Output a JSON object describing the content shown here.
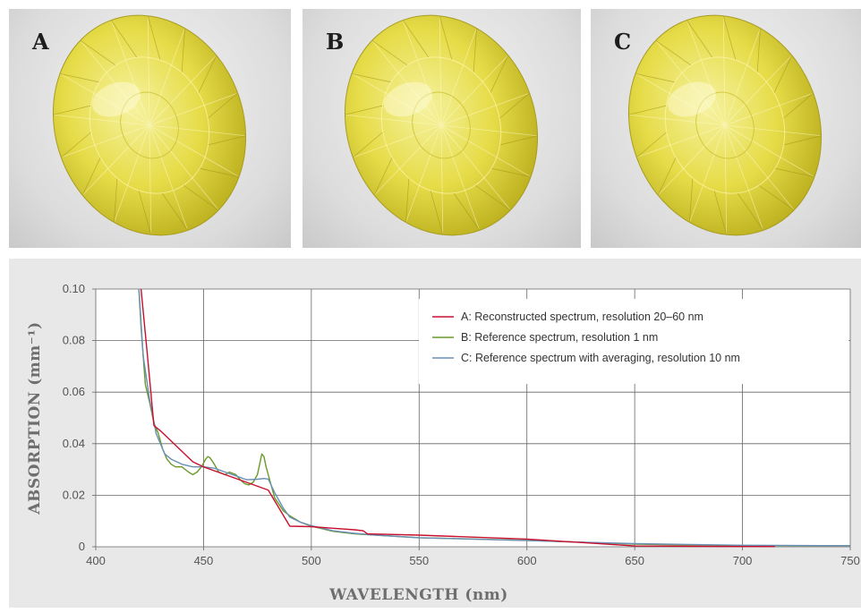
{
  "panels": [
    {
      "label": "A"
    },
    {
      "label": "B"
    },
    {
      "label": "C"
    }
  ],
  "colors": {
    "series_a": "#c8102e",
    "series_b": "#6a9a2a",
    "series_c": "#6a8fb5",
    "gem_light": "#f6f2a0",
    "gem_mid": "#e6dc48",
    "gem_dark": "#b7ab1a"
  },
  "chart_data": {
    "type": "line",
    "xlabel": "WAVELENGTH (nm)",
    "ylabel": "ABSORPTION (mm⁻¹)",
    "xlim": [
      400,
      750
    ],
    "ylim": [
      0,
      0.1
    ],
    "x_ticks": [
      "400",
      "450",
      "500",
      "550",
      "600",
      "650",
      "700",
      "750"
    ],
    "y_ticks": [
      "0",
      "0.02",
      "0.04",
      "0.06",
      "0.08",
      "0.10"
    ],
    "grid": true,
    "legend_position": "top-right",
    "series": [
      {
        "name": "A: Reconstructed spectrum, resolution 20–60 nm",
        "x": [
          421,
          424,
          427,
          430,
          440,
          445,
          450,
          460,
          470,
          480,
          490,
          500,
          510,
          520,
          524,
          526,
          550,
          600,
          650,
          700,
          715
        ],
        "y": [
          0.1,
          0.074,
          0.047,
          0.045,
          0.037,
          0.033,
          0.031,
          0.028,
          0.025,
          0.022,
          0.008,
          0.0078,
          0.0072,
          0.0066,
          0.0062,
          0.005,
          0.0045,
          0.003,
          0.0003,
          0.0001,
          0.0001
        ]
      },
      {
        "name": "B: Reference spectrum, resolution 1 nm",
        "x": [
          420,
          421,
          422,
          423,
          425,
          427,
          429,
          431,
          433,
          435,
          437,
          440,
          443,
          445,
          447,
          449,
          451,
          452,
          453,
          455,
          457,
          460,
          462,
          465,
          467,
          469,
          471,
          473,
          475,
          476,
          477,
          478,
          479,
          481,
          483,
          487,
          490,
          495,
          500,
          510,
          520,
          530,
          550,
          600,
          650,
          700,
          750
        ],
        "y": [
          0.1,
          0.085,
          0.074,
          0.063,
          0.056,
          0.048,
          0.044,
          0.038,
          0.034,
          0.032,
          0.031,
          0.031,
          0.029,
          0.028,
          0.029,
          0.031,
          0.034,
          0.035,
          0.0345,
          0.032,
          0.029,
          0.028,
          0.029,
          0.028,
          0.026,
          0.0245,
          0.024,
          0.025,
          0.028,
          0.032,
          0.036,
          0.035,
          0.031,
          0.025,
          0.019,
          0.014,
          0.012,
          0.0095,
          0.008,
          0.006,
          0.005,
          0.0045,
          0.0035,
          0.0025,
          0.001,
          0.0005,
          0.0004
        ]
      },
      {
        "name": "C: Reference spectrum with averaging, resolution 10 nm",
        "x": [
          420,
          422,
          425,
          428,
          432,
          435,
          440,
          445,
          450,
          455,
          460,
          465,
          470,
          475,
          478,
          480,
          483,
          487,
          490,
          495,
          500,
          510,
          520,
          530,
          550,
          600,
          650,
          700,
          750
        ],
        "y": [
          0.1,
          0.074,
          0.057,
          0.044,
          0.036,
          0.034,
          0.032,
          0.031,
          0.031,
          0.0305,
          0.029,
          0.0275,
          0.026,
          0.0262,
          0.0265,
          0.0263,
          0.021,
          0.015,
          0.0115,
          0.0095,
          0.0082,
          0.0062,
          0.0052,
          0.0045,
          0.0035,
          0.0024,
          0.0012,
          0.0006,
          0.0004
        ]
      }
    ]
  }
}
